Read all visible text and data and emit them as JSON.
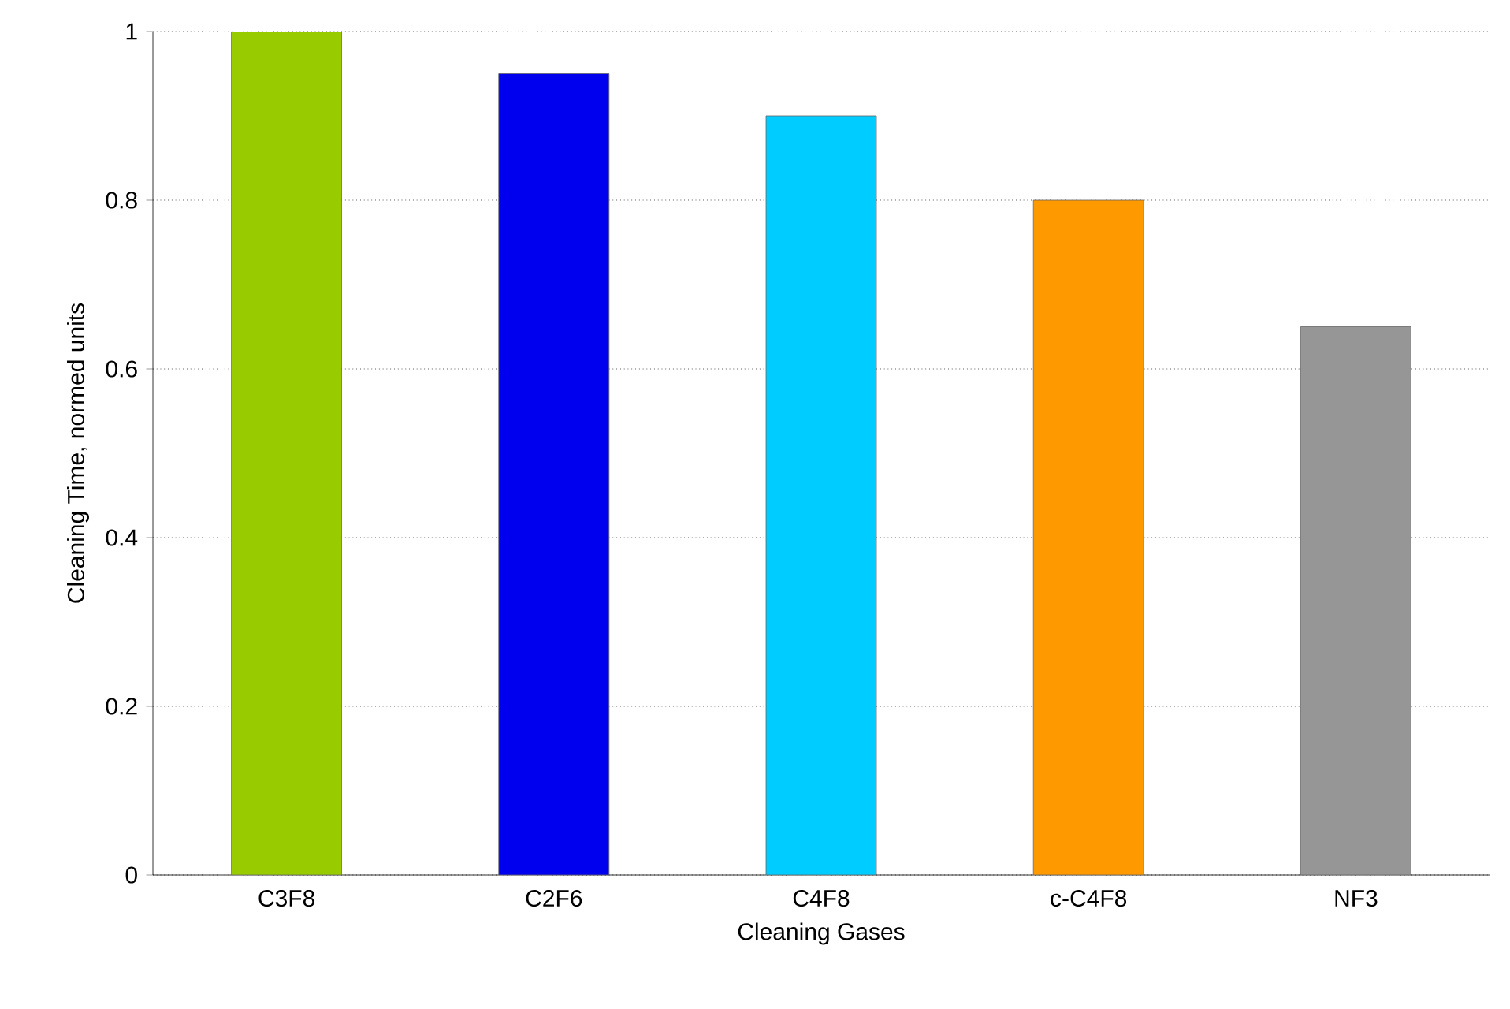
{
  "chart_data": {
    "type": "bar",
    "xlabel": "Cleaning Gases",
    "ylabel": "Cleaning Time, normed units",
    "categories": [
      "C3F8",
      "C2F6",
      "C4F8",
      "c-C4F8",
      "NF3"
    ],
    "values": [
      1.0,
      0.95,
      0.9,
      0.8,
      0.65
    ],
    "colors": [
      "#99cc00",
      "#0000ee",
      "#00ccff",
      "#ff9900",
      "#969696"
    ],
    "ylim": [
      0,
      1
    ],
    "yticks": [
      0,
      0.2,
      0.4,
      0.6,
      0.8,
      1
    ],
    "grid": "y"
  }
}
